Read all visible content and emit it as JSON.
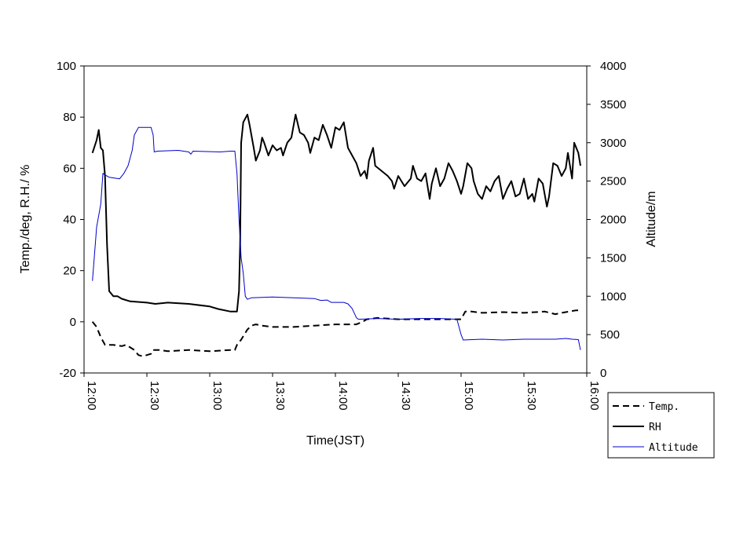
{
  "chart_data": {
    "type": "line",
    "title": "",
    "xlabel": "Time(JST)",
    "ylabel_left": "Temp./deg, R.H./ %",
    "ylabel_right": "Altitude/m",
    "x_ticks": [
      "12:00",
      "12:30",
      "13:00",
      "13:30",
      "14:00",
      "14:30",
      "15:00",
      "15:30",
      "16:00"
    ],
    "x_range_minutes": [
      0,
      240
    ],
    "y_left": {
      "min": -20,
      "max": 100,
      "ticks": [
        "100",
        "80",
        "60",
        "40",
        "20",
        "0",
        "-20"
      ]
    },
    "y_right": {
      "min": 0,
      "max": 4000,
      "ticks": [
        "4000",
        "3500",
        "3000",
        "2500",
        "2000",
        "1500",
        "1000",
        "500",
        "0"
      ]
    },
    "grid": false,
    "legend_position": "bottom-right",
    "series": [
      {
        "name": "Temp.",
        "axis": "left",
        "style": "dashed",
        "color": "#000000",
        "points": [
          [
            4,
            0
          ],
          [
            6,
            -2
          ],
          [
            8,
            -6
          ],
          [
            10,
            -9
          ],
          [
            14,
            -9
          ],
          [
            18,
            -9.5
          ],
          [
            20,
            -9
          ],
          [
            22,
            -10
          ],
          [
            24,
            -11
          ],
          [
            26,
            -13
          ],
          [
            28,
            -13.5
          ],
          [
            30,
            -13
          ],
          [
            32,
            -12.5
          ],
          [
            33,
            -11
          ],
          [
            36,
            -11
          ],
          [
            40,
            -11.5
          ],
          [
            50,
            -11
          ],
          [
            60,
            -11.5
          ],
          [
            70,
            -11
          ],
          [
            72,
            -11
          ],
          [
            73,
            -9
          ],
          [
            75,
            -7
          ],
          [
            78,
            -3
          ],
          [
            80,
            -1.5
          ],
          [
            82,
            -1
          ],
          [
            85,
            -1.5
          ],
          [
            90,
            -2
          ],
          [
            100,
            -2
          ],
          [
            110,
            -1.5
          ],
          [
            120,
            -1
          ],
          [
            130,
            -1
          ],
          [
            133,
            0
          ],
          [
            135,
            1
          ],
          [
            140,
            1.5
          ],
          [
            150,
            1
          ],
          [
            160,
            1
          ],
          [
            170,
            1
          ],
          [
            176,
            1
          ],
          [
            180,
            1
          ],
          [
            182,
            4
          ],
          [
            185,
            4
          ],
          [
            190,
            3.5
          ],
          [
            200,
            3.8
          ],
          [
            210,
            3.5
          ],
          [
            220,
            4
          ],
          [
            225,
            3
          ],
          [
            228,
            3.5
          ],
          [
            235,
            4.5
          ],
          [
            237,
            4.5
          ]
        ]
      },
      {
        "name": "RH",
        "axis": "left",
        "style": "solid",
        "color": "#000000",
        "points": [
          [
            4,
            66
          ],
          [
            6,
            71
          ],
          [
            7,
            75
          ],
          [
            8,
            68
          ],
          [
            9,
            67
          ],
          [
            10,
            57
          ],
          [
            11,
            30
          ],
          [
            12,
            12
          ],
          [
            14,
            10
          ],
          [
            16,
            10
          ],
          [
            18,
            9
          ],
          [
            22,
            8
          ],
          [
            30,
            7.5
          ],
          [
            34,
            7
          ],
          [
            40,
            7.5
          ],
          [
            50,
            7
          ],
          [
            60,
            6
          ],
          [
            64,
            5
          ],
          [
            70,
            4
          ],
          [
            73,
            4
          ],
          [
            74,
            12
          ],
          [
            74.5,
            30
          ],
          [
            75,
            70
          ],
          [
            76,
            78
          ],
          [
            78,
            81
          ],
          [
            79,
            77
          ],
          [
            81,
            68
          ],
          [
            82,
            63
          ],
          [
            84,
            67
          ],
          [
            85,
            72
          ],
          [
            86,
            70
          ],
          [
            88,
            65
          ],
          [
            90,
            69
          ],
          [
            92,
            67
          ],
          [
            94,
            68
          ],
          [
            95,
            65
          ],
          [
            97,
            70
          ],
          [
            99,
            72
          ],
          [
            101,
            81
          ],
          [
            103,
            74
          ],
          [
            105,
            73
          ],
          [
            107,
            70
          ],
          [
            108,
            66
          ],
          [
            110,
            72
          ],
          [
            112,
            71
          ],
          [
            114,
            77
          ],
          [
            116,
            73
          ],
          [
            118,
            68
          ],
          [
            120,
            76
          ],
          [
            122,
            75
          ],
          [
            124,
            78
          ],
          [
            126,
            68
          ],
          [
            128,
            65
          ],
          [
            130,
            62
          ],
          [
            132,
            57
          ],
          [
            134,
            59
          ],
          [
            135,
            56
          ],
          [
            136,
            63
          ],
          [
            138,
            68
          ],
          [
            139,
            61
          ],
          [
            142,
            59
          ],
          [
            145,
            57
          ],
          [
            147,
            55
          ],
          [
            148,
            52
          ],
          [
            150,
            57
          ],
          [
            153,
            53
          ],
          [
            156,
            56
          ],
          [
            157,
            61
          ],
          [
            159,
            56
          ],
          [
            161,
            55
          ],
          [
            163,
            58
          ],
          [
            165,
            48
          ],
          [
            166,
            54
          ],
          [
            168,
            60
          ],
          [
            170,
            53
          ],
          [
            172,
            56
          ],
          [
            174,
            62
          ],
          [
            176,
            59
          ],
          [
            178,
            55
          ],
          [
            180,
            50
          ],
          [
            181,
            53
          ],
          [
            183,
            62
          ],
          [
            185,
            60
          ],
          [
            186,
            55
          ],
          [
            188,
            50
          ],
          [
            190,
            48
          ],
          [
            192,
            53
          ],
          [
            194,
            51
          ],
          [
            196,
            55
          ],
          [
            198,
            57
          ],
          [
            200,
            48
          ],
          [
            202,
            52
          ],
          [
            204,
            55
          ],
          [
            206,
            49
          ],
          [
            208,
            50
          ],
          [
            210,
            56
          ],
          [
            212,
            48
          ],
          [
            214,
            50
          ],
          [
            215,
            47
          ],
          [
            217,
            56
          ],
          [
            219,
            54
          ],
          [
            221,
            45
          ],
          [
            222,
            49
          ],
          [
            224,
            62
          ],
          [
            226,
            61
          ],
          [
            228,
            57
          ],
          [
            230,
            60
          ],
          [
            231,
            66
          ],
          [
            233,
            56
          ],
          [
            234,
            70
          ],
          [
            236,
            66
          ],
          [
            237,
            61
          ]
        ]
      },
      {
        "name": "Altitude",
        "axis": "right",
        "style": "solid",
        "color": "#0000cc",
        "points": [
          [
            4,
            1200
          ],
          [
            6,
            1900
          ],
          [
            8,
            2200
          ],
          [
            9,
            2600
          ],
          [
            10,
            2580
          ],
          [
            12,
            2550
          ],
          [
            17,
            2530
          ],
          [
            19,
            2600
          ],
          [
            21,
            2700
          ],
          [
            23,
            2900
          ],
          [
            24,
            3100
          ],
          [
            26,
            3200
          ],
          [
            32,
            3200
          ],
          [
            33,
            3100
          ],
          [
            33.5,
            2880
          ],
          [
            35,
            2890
          ],
          [
            45,
            2900
          ],
          [
            50,
            2880
          ],
          [
            51,
            2850
          ],
          [
            52,
            2890
          ],
          [
            65,
            2880
          ],
          [
            70,
            2890
          ],
          [
            72,
            2890
          ],
          [
            73,
            2600
          ],
          [
            74,
            2000
          ],
          [
            75,
            1500
          ],
          [
            76,
            1300
          ],
          [
            77,
            1000
          ],
          [
            78,
            960
          ],
          [
            80,
            980
          ],
          [
            90,
            990
          ],
          [
            100,
            980
          ],
          [
            110,
            970
          ],
          [
            113,
            945
          ],
          [
            116,
            950
          ],
          [
            118,
            920
          ],
          [
            124,
            920
          ],
          [
            126,
            900
          ],
          [
            128,
            840
          ],
          [
            130,
            720
          ],
          [
            131,
            700
          ],
          [
            140,
            710
          ],
          [
            150,
            700
          ],
          [
            160,
            710
          ],
          [
            170,
            710
          ],
          [
            178,
            700
          ],
          [
            180,
            500
          ],
          [
            181,
            430
          ],
          [
            190,
            440
          ],
          [
            200,
            430
          ],
          [
            210,
            440
          ],
          [
            220,
            440
          ],
          [
            225,
            440
          ],
          [
            230,
            450
          ],
          [
            233,
            440
          ],
          [
            236,
            435
          ],
          [
            237,
            300
          ]
        ]
      }
    ]
  }
}
